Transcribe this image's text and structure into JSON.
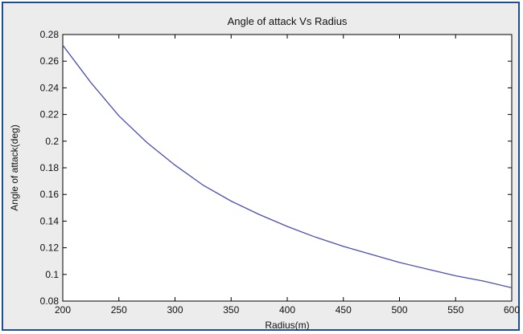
{
  "chart_data": {
    "type": "line",
    "title": "Angle of attack Vs Radius",
    "xlabel": "Radius(m)",
    "ylabel": "Angle of attack(deg)",
    "xlim": [
      200,
      600
    ],
    "ylim": [
      0.08,
      0.28
    ],
    "x_ticks": [
      "200",
      "250",
      "300",
      "350",
      "400",
      "450",
      "500",
      "550",
      "600"
    ],
    "y_ticks": [
      "0.08",
      "0.1",
      "0.12",
      "0.14",
      "0.16",
      "0.18",
      "0.2",
      "0.22",
      "0.24",
      "0.26",
      "0.28"
    ],
    "grid": false,
    "series": [
      {
        "color": "#4a4fb0",
        "x": [
          200,
          225,
          250,
          275,
          300,
          325,
          350,
          375,
          400,
          425,
          450,
          475,
          500,
          525,
          550,
          575,
          600
        ],
        "y": [
          0.272,
          0.244,
          0.219,
          0.199,
          0.182,
          0.167,
          0.155,
          0.145,
          0.136,
          0.128,
          0.121,
          0.115,
          0.109,
          0.104,
          0.099,
          0.095,
          0.09
        ]
      }
    ]
  }
}
